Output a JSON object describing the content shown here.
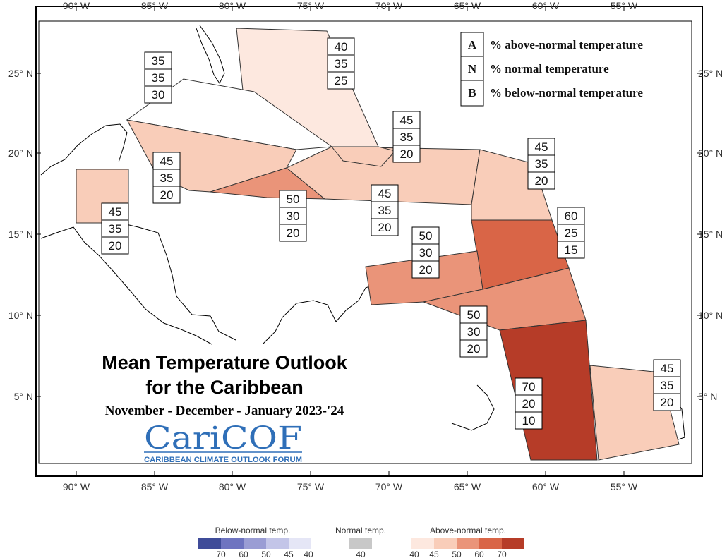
{
  "title": {
    "line1": "Mean Temperature Outlook",
    "line2": "for the Caribbean",
    "period": "November - December - January 2023-'24"
  },
  "logo": {
    "name": "CariCOF",
    "subtitle": "CARIBBEAN CLIMATE OUTLOOK FORUM"
  },
  "axes": {
    "longitude_labels": [
      "90° W",
      "85° W",
      "80° W",
      "75° W",
      "70° W",
      "65° W",
      "60° W",
      "55° W"
    ],
    "latitude_labels": [
      "25° N",
      "20° N",
      "15° N",
      "10° N",
      "5° N"
    ]
  },
  "key": [
    {
      "letter": "A",
      "text": "% above-normal temperature"
    },
    {
      "letter": "N",
      "text": "% normal temperature"
    },
    {
      "letter": "B",
      "text": "% below-normal temperature"
    }
  ],
  "regions": [
    {
      "id": "bahamas",
      "A": "40",
      "N": "35",
      "B": "25",
      "fill": "#fde8df"
    },
    {
      "id": "cuba",
      "A": "35",
      "N": "35",
      "B": "30",
      "fill": "#ffffff"
    },
    {
      "id": "western-cuba-caymans",
      "A": "45",
      "N": "35",
      "B": "20",
      "fill": "#f9cdb9"
    },
    {
      "id": "jamaica",
      "A": "50",
      "N": "30",
      "B": "20",
      "fill": "#ea9479"
    },
    {
      "id": "hispaniola-pr",
      "A": "45",
      "N": "35",
      "B": "20",
      "fill": "#f9cdb9"
    },
    {
      "id": "turks-caicos",
      "A": "45",
      "N": "35",
      "B": "20",
      "fill": "#f9cdb9"
    },
    {
      "id": "belize",
      "A": "45",
      "N": "35",
      "B": "20",
      "fill": "#f9cdb9"
    },
    {
      "id": "leeward-islands",
      "A": "45",
      "N": "35",
      "B": "20",
      "fill": "#f9cdb9"
    },
    {
      "id": "windward-islands",
      "A": "60",
      "N": "25",
      "B": "15",
      "fill": "#d96547"
    },
    {
      "id": "abc-islands",
      "A": "50",
      "N": "30",
      "B": "20",
      "fill": "#ea9479"
    },
    {
      "id": "trinidad-tobago",
      "A": "50",
      "N": "30",
      "B": "20",
      "fill": "#ea9479"
    },
    {
      "id": "guyana",
      "A": "70",
      "N": "20",
      "B": "10",
      "fill": "#b63c28"
    },
    {
      "id": "suriname-guiana",
      "A": "45",
      "N": "35",
      "B": "20",
      "fill": "#f9cdb9"
    }
  ],
  "scale": {
    "below_label": "Below-normal temp.",
    "normal_label": "Normal temp.",
    "above_label": "Above-normal temp.",
    "below_ticks": [
      "70",
      "60",
      "50",
      "45",
      "40"
    ],
    "normal_ticks": [
      "40"
    ],
    "above_ticks": [
      "40",
      "45",
      "50",
      "60",
      "70"
    ],
    "below_colors": [
      "#3f4c99",
      "#6e74c0",
      "#9a9dd4",
      "#c3c5e8",
      "#e5e6f6"
    ],
    "normal_color": "#c8c8c8",
    "above_colors": [
      "#fde8df",
      "#f9cdb9",
      "#ea9479",
      "#d96547",
      "#b63c28"
    ]
  }
}
